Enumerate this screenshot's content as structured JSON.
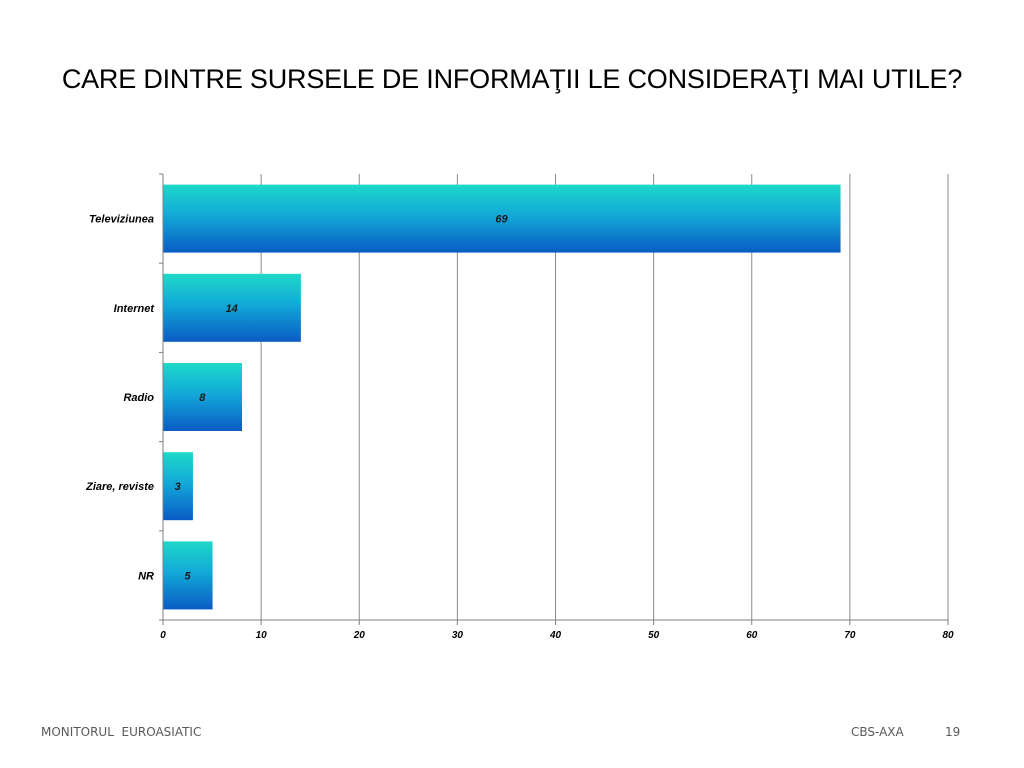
{
  "slide": {
    "title": "CARE DINTRE SURSELE DE INFORMAŢII LE CONSIDERAŢI MAI UTILE?",
    "footer_left": "MONITORUL  EUROASIATIC",
    "footer_center": "CBS-AXA",
    "page_number": "19"
  },
  "colors": {
    "bar_top": "#1ED9C8",
    "bar_bottom": "#0A5BC4",
    "grid": "#8c8c8c",
    "axis": "#7f7f7f"
  },
  "chart_data": {
    "type": "bar",
    "orientation": "horizontal",
    "categories": [
      "Televiziunea",
      "Internet",
      "Radio",
      "Ziare, reviste",
      "NR"
    ],
    "values": [
      69,
      14,
      8,
      3,
      5
    ],
    "data_labels": [
      "69",
      "14",
      "8",
      "3",
      "5"
    ],
    "x_ticks": [
      "0",
      "10",
      "20",
      "30",
      "40",
      "50",
      "60",
      "70",
      "80"
    ],
    "xlim": [
      0,
      80
    ],
    "grid": true,
    "legend": "none"
  }
}
